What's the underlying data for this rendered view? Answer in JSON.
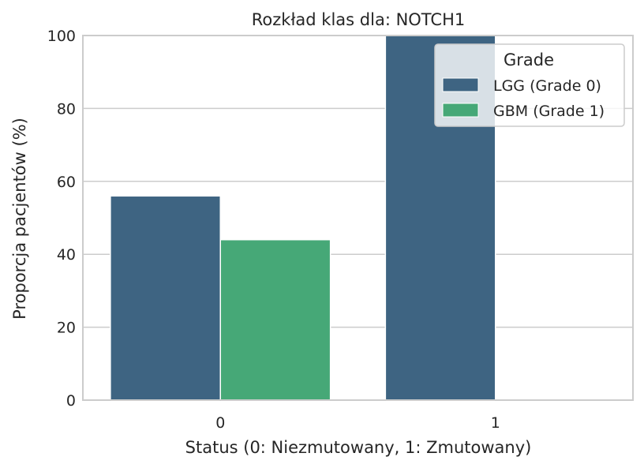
{
  "chart_data": {
    "type": "bar",
    "title": "Rozkład klas dla: NOTCH1",
    "xlabel": "Status (0: Niezmutowany, 1: Zmutowany)",
    "ylabel": "Proporcja pacjentów (%)",
    "categories": [
      "0",
      "1"
    ],
    "ylim": [
      0,
      100
    ],
    "yticks": [
      "0",
      "20",
      "40",
      "60",
      "80",
      "100"
    ],
    "grid": true,
    "legend": {
      "title": "Grade",
      "placement": "top-right"
    },
    "series": [
      {
        "name": "LGG (Grade 0)",
        "color": "#3e6482",
        "values": [
          56,
          100
        ]
      },
      {
        "name": "GBM (Grade 1)",
        "color": "#46a877",
        "values": [
          44,
          0
        ]
      }
    ]
  }
}
